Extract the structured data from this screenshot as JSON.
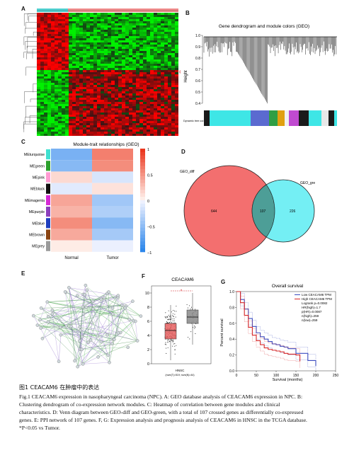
{
  "panels": {
    "A": {
      "label": "A"
    },
    "B": {
      "label": "B",
      "title": "Gene dendrogram and module colors (GEO)",
      "ylabel": "Height",
      "yticks": [
        "1.0",
        "0.9",
        "0.8",
        "0.7",
        "0.6",
        "0.5",
        "0.4"
      ],
      "rowlabel": "Dynamic tree cut"
    },
    "C": {
      "label": "C",
      "title": "Module-trait relationships (GEO)",
      "rows": [
        "MEturquoise",
        "MEgreen",
        "MEpink",
        "MEblack",
        "MEmagenta",
        "MEpurple",
        "MEblue",
        "MEbrown",
        "MEgrey"
      ],
      "cols": [
        "Normal",
        "Tumor"
      ],
      "scale": [
        "1",
        "0.5",
        "0",
        "−0.5",
        "−1"
      ]
    },
    "D": {
      "label": "D",
      "left_name": "GEO_diff",
      "right_name": "GEO_gre",
      "left_only": "644",
      "overlap": "107",
      "right_only": "226"
    },
    "E": {
      "label": "E"
    },
    "F": {
      "label": "F",
      "title": "CEACAM6",
      "yticks": [
        "10",
        "8",
        "6",
        "4",
        "2",
        "0"
      ],
      "xlabel": "HNSC",
      "counts": "(num(T)=519; num(N)=44)",
      "sig": "*"
    },
    "G": {
      "label": "G",
      "title": "Overall survival",
      "ylabel": "Percent survival",
      "xlabel": "Survival (months)",
      "xticks": [
        "0",
        "50",
        "100",
        "150",
        "200",
        "250"
      ],
      "yticks": [
        "1.0",
        "0.8",
        "0.6",
        "0.4",
        "0.2",
        "0.0"
      ],
      "legend": [
        "Low CEACAM6 TPM",
        "High CEACAM6 TPM",
        "Logrank p=0.0082",
        "HR(high)=1.7",
        "p(HR)=0.0087",
        "n(high)=259",
        "n(low)=259"
      ]
    }
  },
  "chart_data": [
    {
      "type": "bar",
      "panel": "F",
      "title": "CEACAM6",
      "categories": [
        "Tumor",
        "Normal"
      ],
      "box_medians": [
        4.7,
        6.6
      ],
      "box_q1": [
        3.5,
        5.7
      ],
      "box_q3": [
        5.7,
        7.6
      ],
      "ylim": [
        0,
        11
      ]
    },
    {
      "type": "line",
      "panel": "G",
      "title": "Overall survival",
      "xlabel": "Survival (months)",
      "ylabel": "Percent survival",
      "xlim": [
        0,
        250
      ],
      "ylim": [
        0,
        1
      ],
      "series": [
        {
          "name": "Low CEACAM6 TPM",
          "color": "#3b4cc0",
          "x": [
            0,
            10,
            20,
            30,
            40,
            50,
            60,
            70,
            80,
            90,
            100,
            110,
            120,
            130,
            150,
            180,
            200
          ],
          "y": [
            1.0,
            0.9,
            0.78,
            0.66,
            0.56,
            0.48,
            0.43,
            0.4,
            0.37,
            0.34,
            0.33,
            0.31,
            0.3,
            0.28,
            0.22,
            0.13,
            0.06
          ]
        },
        {
          "name": "High CEACAM6 TPM",
          "color": "#d62728",
          "x": [
            0,
            10,
            20,
            30,
            40,
            50,
            60,
            70,
            80,
            90,
            100,
            110,
            120,
            130,
            150,
            160
          ],
          "y": [
            1.0,
            0.86,
            0.7,
            0.55,
            0.45,
            0.38,
            0.33,
            0.29,
            0.27,
            0.26,
            0.25,
            0.24,
            0.22,
            0.21,
            0.2,
            0.12
          ]
        }
      ]
    }
  ],
  "caption": {
    "chinese": "图1  CEACAM6 在肿瘤中的表达",
    "line1": "Fig.1  CEACAM6 expression in nasopharyngeal carcinoma (NPC). A: GEO database analysis of CEACAM6 expression in NPC. B:",
    "line2": "Clustering dendrogram of co-expression network modules. C: Heatmap of correlation between gene modules and clinical",
    "line3": "characteristics. D: Venn diagram between GEO-diff and GEO-green, with a total of 107 crossed genes as differentially co-expressed",
    "line4": "genes. E: PPI network of 107 genes. F, G: Expression analysis and prognosis analysis of CEACAM6 in HNSC in the TCGA database.",
    "line5": "*P<0.05 vs Tumor."
  },
  "colors": {
    "red": "#d62728",
    "blue": "#3b4cc0",
    "cyan": "#3ee6e6",
    "venn_red": "#f36f6f",
    "venn_cyan": "#46e9f0"
  }
}
